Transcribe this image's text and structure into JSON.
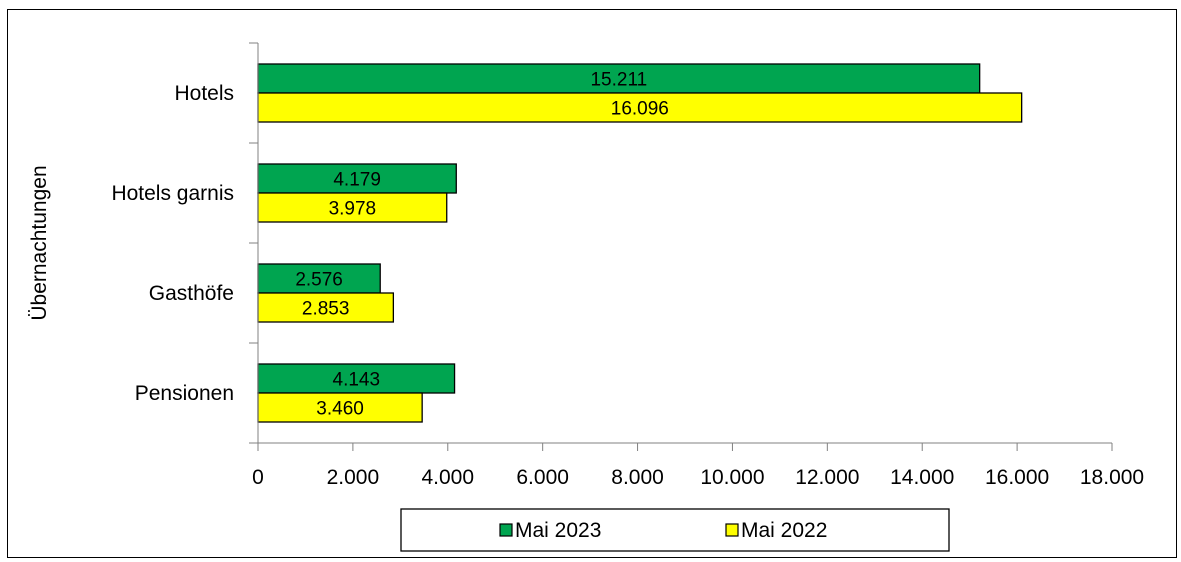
{
  "chart_data": {
    "type": "bar",
    "orientation": "horizontal",
    "title": "",
    "xlabel": "",
    "ylabel": "Übernachtungen",
    "categories": [
      "Hotels",
      "Hotels garnis",
      "Gasthöfe",
      "Pensionen"
    ],
    "series": [
      {
        "name": "Mai 2023",
        "color": "#00A550",
        "values": [
          15211,
          4179,
          2576,
          4143
        ],
        "labels": [
          "15.211",
          "4.179",
          "2.576",
          "4.143"
        ]
      },
      {
        "name": "Mai 2022",
        "color": "#FFFF00",
        "values": [
          16096,
          3978,
          2853,
          3460
        ],
        "labels": [
          "16.096",
          "3.978",
          "2.853",
          "3.460"
        ]
      }
    ],
    "xlim": [
      0,
      18000
    ],
    "xticks": [
      0,
      2000,
      4000,
      6000,
      8000,
      10000,
      12000,
      14000,
      16000,
      18000
    ],
    "xtick_labels": [
      "0",
      "2.000",
      "4.000",
      "6.000",
      "8.000",
      "10.000",
      "12.000",
      "14.000",
      "16.000",
      "18.000"
    ],
    "grid": false,
    "legend_position": "bottom"
  }
}
